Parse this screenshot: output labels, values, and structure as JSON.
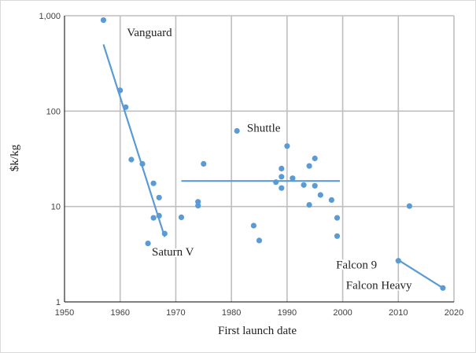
{
  "chart_data": {
    "type": "scatter",
    "title": "",
    "xlabel": "First launch date",
    "ylabel": "$k/kg",
    "xlim": [
      1950,
      2020
    ],
    "ylim": [
      1,
      1000
    ],
    "yscale": "log",
    "grid": true,
    "legend": "none",
    "x_ticks": [
      1950,
      1960,
      1970,
      1980,
      1990,
      2000,
      2010,
      2020
    ],
    "y_ticks": [
      1,
      10,
      100,
      1000
    ],
    "y_tick_labels": [
      "1",
      "10",
      "100",
      "1,000"
    ],
    "colors": {
      "points": "#5b9bd5",
      "trend": "#5b9bd5",
      "grid": "#bfbfbf",
      "axis": "#000000"
    },
    "series": [
      {
        "values": [
          [
            1957,
            900
          ],
          [
            1960,
            165
          ],
          [
            1961,
            110
          ],
          [
            1962,
            31
          ],
          [
            1964,
            28
          ],
          [
            1965,
            4.1
          ],
          [
            1966,
            17.5
          ],
          [
            1966,
            7.6
          ],
          [
            1967,
            12.4
          ],
          [
            1967,
            8
          ],
          [
            1968,
            5.2
          ],
          [
            1971,
            7.7
          ],
          [
            1974,
            11.2
          ],
          [
            1974,
            10.2
          ],
          [
            1975,
            28
          ],
          [
            1981,
            62
          ],
          [
            1984,
            6.3
          ],
          [
            1985,
            4.4
          ],
          [
            1988,
            18
          ],
          [
            1989,
            25
          ],
          [
            1989,
            20.5
          ],
          [
            1989,
            15.6
          ],
          [
            1990,
            43
          ],
          [
            1991,
            19.8
          ],
          [
            1993,
            16.8
          ],
          [
            1994,
            26.6
          ],
          [
            1994,
            10.4
          ],
          [
            1995,
            31.9
          ],
          [
            1995,
            16.5
          ],
          [
            1996,
            13.2
          ],
          [
            1998,
            11.7
          ],
          [
            1999,
            7.6
          ],
          [
            1999,
            4.9
          ],
          [
            2010,
            2.7
          ],
          [
            2012,
            10.1
          ],
          [
            2018,
            1.4
          ]
        ]
      }
    ],
    "trend_lines": [
      {
        "points": [
          [
            1957,
            500
          ],
          [
            1968,
            4.8
          ]
        ]
      },
      {
        "points": [
          [
            1971,
            18.5
          ],
          [
            1999.5,
            18.5
          ]
        ]
      },
      {
        "points": [
          [
            2010,
            2.75
          ],
          [
            2018,
            1.4
          ]
        ]
      }
    ],
    "annotations": [
      {
        "text": "Vanguard",
        "x": 1961.2,
        "y": 610
      },
      {
        "text": "Saturn V",
        "x": 1965.7,
        "y": 3.05
      },
      {
        "text": "Shuttle",
        "x": 1982.8,
        "y": 61
      },
      {
        "text": "Falcon 9",
        "x": 1998.8,
        "y": 2.25
      },
      {
        "text": "Falcon Heavy",
        "x": 2000.6,
        "y": 1.37
      }
    ]
  }
}
